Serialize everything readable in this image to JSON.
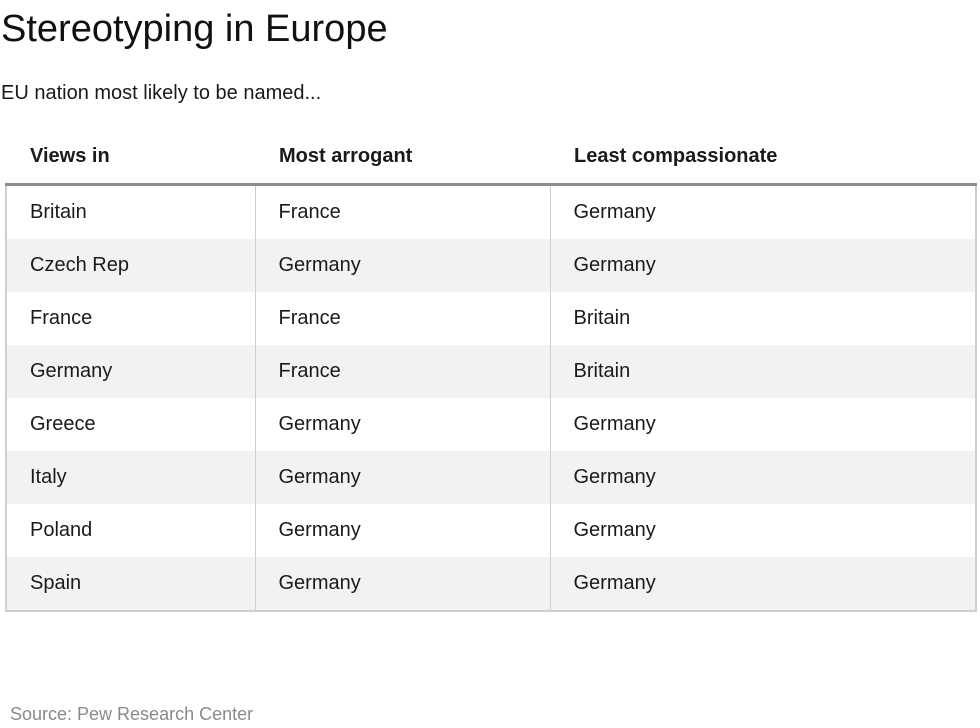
{
  "chart_data": {
    "type": "table",
    "title": "Stereotyping in Europe",
    "subtitle": "EU nation most likely to be named...",
    "columns": [
      "Views in",
      "Most arrogant",
      "Least compassionate"
    ],
    "rows": [
      [
        "Britain",
        "France",
        "Germany"
      ],
      [
        "Czech Rep",
        "Germany",
        "Germany"
      ],
      [
        "France",
        "France",
        "Britain"
      ],
      [
        "Germany",
        "France",
        "Britain"
      ],
      [
        "Greece",
        "Germany",
        "Germany"
      ],
      [
        "Italy",
        "Germany",
        "Germany"
      ],
      [
        "Poland",
        "Germany",
        "Germany"
      ],
      [
        "Spain",
        "Germany",
        "Germany"
      ]
    ],
    "source": "Source: Pew Research Center"
  },
  "colors": {
    "header_rule": "#8c8c8c",
    "stripe": "#f2f2f2",
    "border": "#cfcfcf",
    "source_text": "#8a8a8a"
  }
}
